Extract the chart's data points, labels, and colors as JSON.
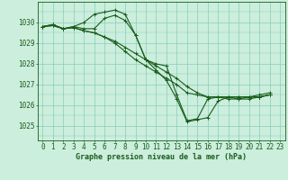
{
  "bg_color": "#cceedd",
  "grid_color": "#aaddcc",
  "line_color": "#1a5c1a",
  "xlabel": "Graphe pression niveau de la mer (hPa)",
  "xlabel_fontsize": 6.0,
  "tick_fontsize": 5.5,
  "ytick_labels": [
    1025,
    1026,
    1027,
    1028,
    1029,
    1030
  ],
  "ylim": [
    1024.3,
    1031.0
  ],
  "xlim": [
    -0.5,
    23.5
  ],
  "xtick_labels": [
    0,
    1,
    2,
    3,
    4,
    5,
    6,
    7,
    8,
    9,
    10,
    11,
    12,
    13,
    14,
    15,
    16,
    17,
    18,
    19,
    20,
    21,
    22,
    23
  ],
  "series": [
    [
      1029.8,
      1029.9,
      1029.7,
      1029.8,
      1029.7,
      1029.7,
      1030.2,
      1030.35,
      1030.1,
      1029.4,
      1028.2,
      1027.7,
      1027.2,
      1026.3,
      1025.2,
      1025.3,
      1025.4,
      1026.2,
      1026.4,
      1026.3,
      1026.3,
      1026.4,
      1026.5
    ],
    [
      1029.8,
      1029.85,
      1029.7,
      1029.75,
      1029.6,
      1029.5,
      1029.3,
      1029.0,
      1028.6,
      1028.2,
      1027.9,
      1027.6,
      1027.3,
      1027.0,
      1026.6,
      1026.5,
      1026.4,
      1026.4,
      1026.4,
      1026.4,
      1026.4,
      1026.4,
      1026.5
    ],
    [
      1029.8,
      1029.85,
      1029.7,
      1029.75,
      1029.6,
      1029.5,
      1029.3,
      1029.1,
      1028.8,
      1028.5,
      1028.2,
      1027.9,
      1027.6,
      1027.3,
      1026.9,
      1026.6,
      1026.4,
      1026.4,
      1026.4,
      1026.4,
      1026.4,
      1026.4,
      1026.5
    ],
    [
      1029.8,
      1029.9,
      1029.7,
      1029.8,
      1030.0,
      1030.4,
      1030.5,
      1030.6,
      1030.4,
      1029.4,
      1028.2,
      1028.0,
      1027.9,
      1026.5,
      1025.25,
      1025.35,
      1026.3,
      1026.4,
      1026.3,
      1026.3,
      1026.4,
      1026.5,
      1026.6
    ]
  ],
  "series_x": [
    [
      0,
      1,
      2,
      3,
      4,
      5,
      6,
      7,
      8,
      9,
      10,
      11,
      12,
      13,
      14,
      15,
      16,
      17,
      18,
      19,
      20,
      21,
      22
    ],
    [
      0,
      1,
      2,
      3,
      4,
      5,
      6,
      7,
      8,
      9,
      10,
      11,
      12,
      13,
      14,
      15,
      16,
      17,
      18,
      19,
      20,
      21,
      22
    ],
    [
      0,
      1,
      2,
      3,
      4,
      5,
      6,
      7,
      8,
      9,
      10,
      11,
      12,
      13,
      14,
      15,
      16,
      17,
      18,
      19,
      20,
      21,
      22
    ],
    [
      0,
      1,
      2,
      3,
      4,
      5,
      6,
      7,
      8,
      9,
      10,
      11,
      12,
      13,
      14,
      15,
      16,
      17,
      18,
      19,
      20,
      21,
      22
    ]
  ]
}
